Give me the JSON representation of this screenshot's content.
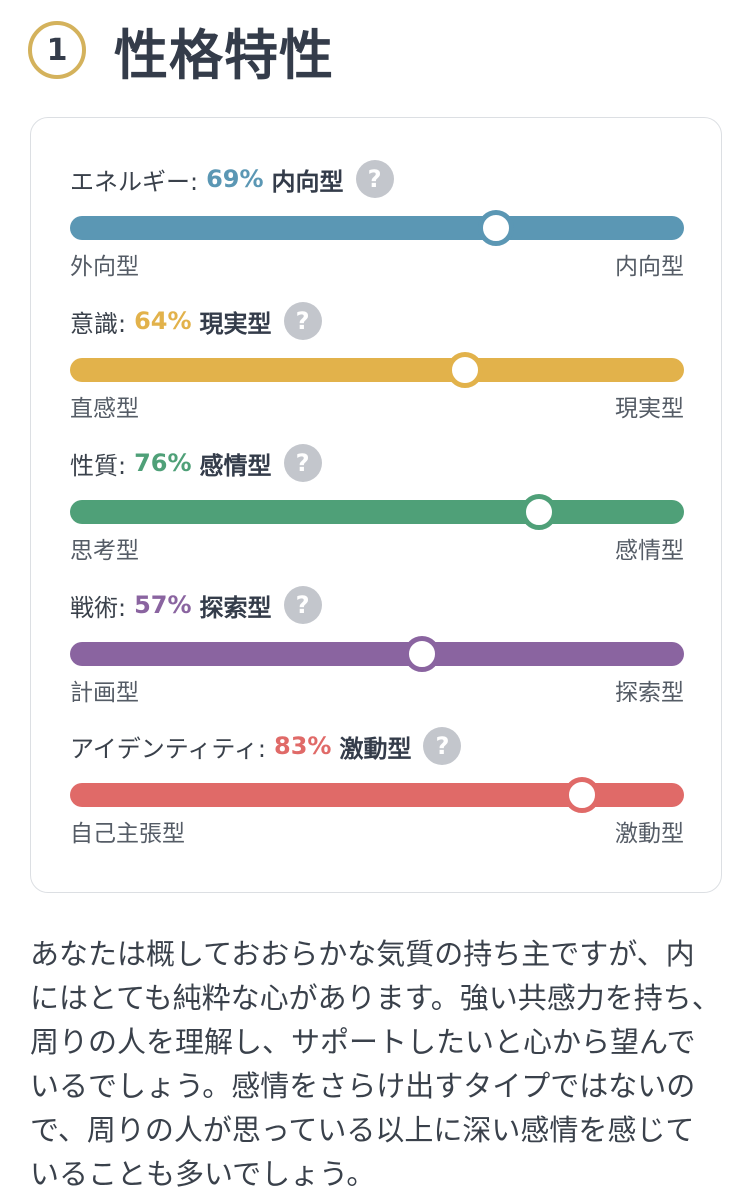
{
  "header": {
    "number": "1",
    "title": "性格特性"
  },
  "traits": [
    {
      "name": "エネルギー:",
      "percent": "69%",
      "value": 0.69,
      "type": "内向型",
      "left": "外向型",
      "right": "内向型",
      "color": "#5b97b4"
    },
    {
      "name": "意識:",
      "percent": "64%",
      "value": 0.64,
      "type": "現実型",
      "left": "直感型",
      "right": "現実型",
      "color": "#e2b24b"
    },
    {
      "name": "性質:",
      "percent": "76%",
      "value": 0.76,
      "type": "感情型",
      "left": "思考型",
      "right": "感情型",
      "color": "#4fa078"
    },
    {
      "name": "戦術:",
      "percent": "57%",
      "value": 0.57,
      "type": "探索型",
      "left": "計画型",
      "right": "探索型",
      "color": "#8a64a0"
    },
    {
      "name": "アイデンティティ:",
      "percent": "83%",
      "value": 0.83,
      "type": "激動型",
      "left": "自己主張型",
      "right": "激動型",
      "color": "#e06a68"
    }
  ],
  "help_icon": {
    "icon": "question-icon",
    "glyph": "?"
  },
  "description": "あなたは概しておおらかな気質の持ち主ですが、内にはとても純粋な心があります。強い共感力を持ち、周りの人を理解し、サポートしたいと心から望んでいるでしょう。感情をさらけ出すタイプではないので、周りの人が思っている以上に深い感情を感じていることも多いでしょう。"
}
